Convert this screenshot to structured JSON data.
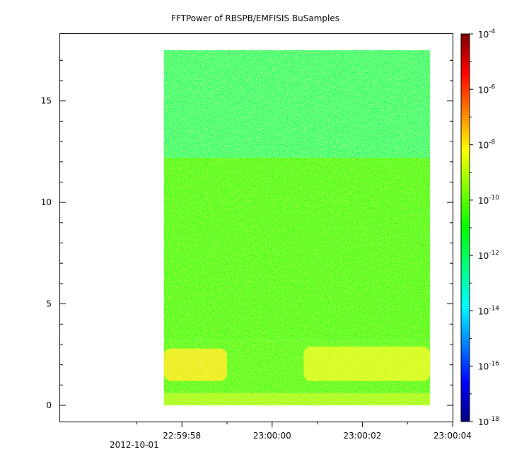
{
  "chart_data": {
    "type": "heatmap",
    "title": "FFTPower of RBSPB/EMFISIS  BuSamples",
    "xlabel": "",
    "ylabel": "",
    "x_ticks": [
      "22:59:58",
      "23:00:00",
      "23:00:02",
      "23:00:04"
    ],
    "x_date_label": "2012-10-01",
    "y_ticks": [
      "0",
      "5",
      "10",
      "15"
    ],
    "ylim": [
      -0.8,
      18.3
    ],
    "xlim_seconds_after_2259": [
      55.3,
      64.0
    ],
    "data_x_range": [
      "22:59:57.6",
      "23:00:03.5"
    ],
    "data_y_range": [
      0,
      17.5
    ],
    "colorbar": {
      "scale": "log",
      "range": [
        1e-18,
        0.0001
      ],
      "tick_bases": [
        "10",
        "10",
        "10",
        "10",
        "10",
        "10",
        "10",
        "10"
      ],
      "tick_exponents": [
        "-4",
        "-6",
        "-8",
        "-10",
        "-12",
        "-14",
        "-16",
        "-18"
      ],
      "colors": [
        "#00007f",
        "#0000ff",
        "#007fff",
        "#00ffff",
        "#00ff7f",
        "#00ff00",
        "#7fff00",
        "#ffff00",
        "#ff7f00",
        "#ff0000",
        "#7f0000"
      ]
    },
    "bands": [
      {
        "y_range": [
          12.2,
          17.5
        ],
        "log_power": -12.3
      },
      {
        "y_range": [
          3.2,
          12.2
        ],
        "log_power": -10.4
      },
      {
        "y_range": [
          0.6,
          3.2
        ],
        "log_power": -10.3
      },
      {
        "y_range": [
          0,
          0.6
        ],
        "log_power": -9.2
      }
    ],
    "enhanced_regions": [
      {
        "x_range": [
          "22:59:57.6",
          "22:59:59.0"
        ],
        "y_range": [
          1.2,
          2.8
        ],
        "log_power": -8.0
      },
      {
        "x_range": [
          "23:00:00.7",
          "23:00:03.5"
        ],
        "y_range": [
          1.2,
          2.9
        ],
        "log_power": -8.5
      }
    ]
  }
}
